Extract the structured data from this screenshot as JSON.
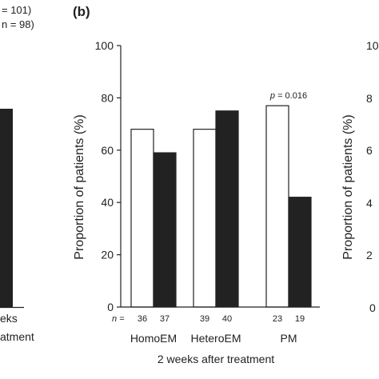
{
  "panel_left": {
    "legend_lines": [
      "= 101)",
      "n = 98)"
    ],
    "xlabel_fragments": [
      "eks",
      "atment"
    ]
  },
  "panel_b": {
    "label": "(b)"
  },
  "panel_right": {
    "ylabel_fragment": "Proportion of patients (%)",
    "tick_fragments": [
      "10",
      "8",
      "6",
      "4",
      "2",
      "0"
    ]
  },
  "colors": {
    "treatment_a": "#ffffff",
    "treatment_b": "#222222",
    "axis": "#222222"
  },
  "chart_data": {
    "type": "bar",
    "ylabel": "Proportion of patients (%)",
    "xlabel": "2 weeks after treatment",
    "ylim": [
      0,
      100
    ],
    "yticks": [
      0,
      20,
      40,
      60,
      80,
      100
    ],
    "categories": [
      "HomoEM",
      "HeteroEM",
      "PM"
    ],
    "n_label": "n =",
    "series": [
      {
        "values": [
          68,
          68,
          77
        ],
        "n": [
          36,
          39,
          23
        ],
        "color": "#ffffff"
      },
      {
        "values": [
          59,
          75,
          42
        ],
        "n": [
          37,
          40,
          19
        ],
        "color": "#222222"
      }
    ],
    "annotations": [
      {
        "category": "PM",
        "text": "p = 0.016"
      }
    ]
  }
}
